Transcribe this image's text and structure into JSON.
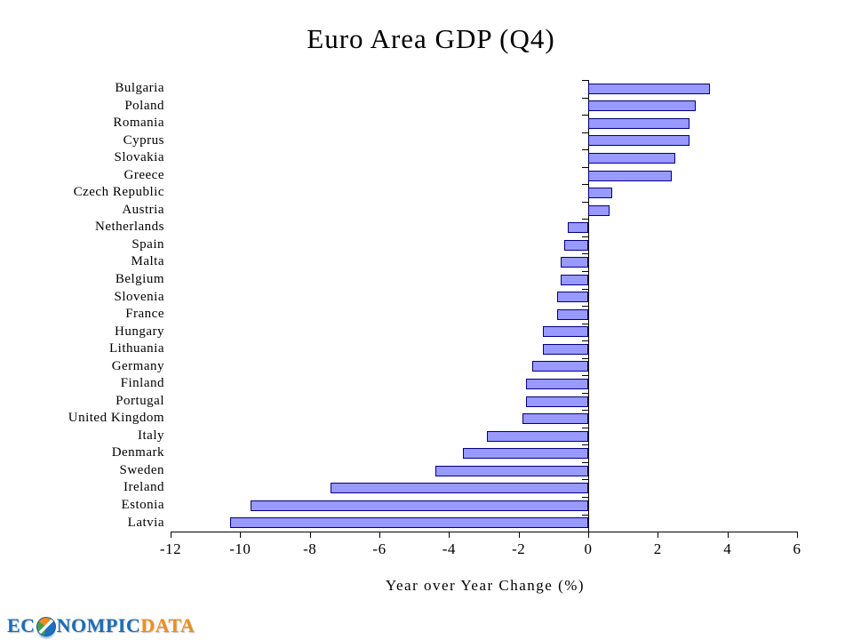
{
  "chart_data": {
    "type": "bar",
    "orientation": "horizontal",
    "title": "Euro Area GDP (Q4)",
    "xlabel": "Year over Year Change (%)",
    "xlim": [
      -12,
      6
    ],
    "xticks": [
      -12,
      -10,
      -8,
      -6,
      -4,
      -2,
      0,
      2,
      4,
      6
    ],
    "grid": false,
    "legend": "none",
    "categories": [
      "Bulgaria",
      "Poland",
      "Romania",
      "Cyprus",
      "Slovakia",
      "Greece",
      "Czech Republic",
      "Austria",
      "Netherlands",
      "Spain",
      "Malta",
      "Belgium",
      "Slovenia",
      "France",
      "Hungary",
      "Lithuania",
      "Germany",
      "Finland",
      "Portugal",
      "United Kingdom",
      "Italy",
      "Denmark",
      "Sweden",
      "Ireland",
      "Estonia",
      "Latvia"
    ],
    "values": [
      3.5,
      3.1,
      2.9,
      2.9,
      2.5,
      2.4,
      0.7,
      0.6,
      -0.6,
      -0.7,
      -0.8,
      -0.8,
      -0.9,
      -0.9,
      -1.3,
      -1.3,
      -1.6,
      -1.8,
      -1.8,
      -1.9,
      -2.9,
      -3.6,
      -4.4,
      -7.4,
      -9.7,
      -10.3
    ],
    "bar_fill": "#9999ff",
    "bar_border": "#000080",
    "axis_color": "#000000"
  },
  "logo": {
    "prefix": "EC",
    "middle": "NOMPIC",
    "suffix": "DATA",
    "blue": "#1b6cb5",
    "orange": "#ef8e1d",
    "globe": "globe-icon"
  }
}
